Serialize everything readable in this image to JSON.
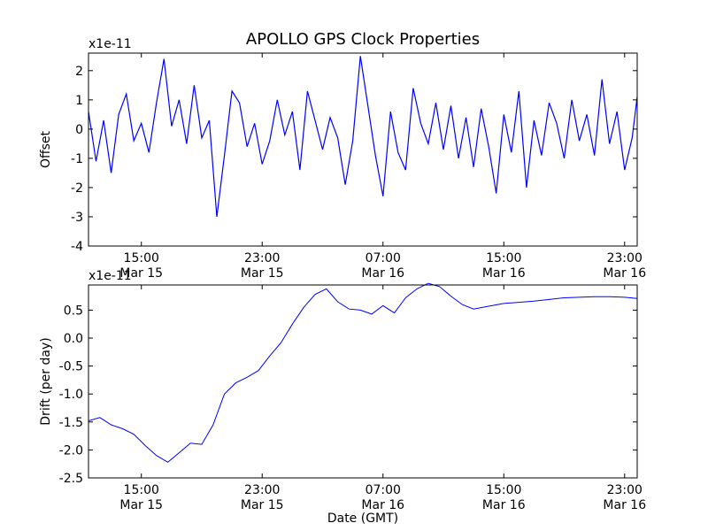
{
  "title": "APOLLO GPS Clock Properties",
  "chart_data": [
    {
      "type": "line",
      "ylabel": "Offset",
      "scale_label": "x1e-11",
      "xlabel": "",
      "ylim": [
        -4,
        2.6
      ],
      "yticks": [
        -4,
        -3,
        -2,
        -1,
        0,
        1,
        2
      ],
      "xlim": [
        "Mar 15 11:30",
        "Mar 16 23:50"
      ],
      "xticks": [
        {
          "at": "Mar 15 15:00",
          "time": "15:00",
          "date": "Mar 15"
        },
        {
          "at": "Mar 15 23:00",
          "time": "23:00",
          "date": "Mar 15"
        },
        {
          "at": "Mar 16 07:00",
          "time": "07:00",
          "date": "Mar 16"
        },
        {
          "at": "Mar 16 15:00",
          "time": "15:00",
          "date": "Mar 16"
        },
        {
          "at": "Mar 16 23:00",
          "time": "23:00",
          "date": "Mar 16"
        }
      ],
      "color": "#0000ff",
      "series": [
        {
          "x": [
            "Mar 15 11:30",
            "Mar 15 12:00",
            "Mar 15 12:30",
            "Mar 15 13:00",
            "Mar 15 13:30",
            "Mar 15 14:00",
            "Mar 15 14:30",
            "Mar 15 15:00",
            "Mar 15 15:30",
            "Mar 15 16:00",
            "Mar 15 16:30",
            "Mar 15 17:00",
            "Mar 15 17:30",
            "Mar 15 18:00",
            "Mar 15 18:30",
            "Mar 15 19:00",
            "Mar 15 19:30",
            "Mar 15 20:00",
            "Mar 15 20:30",
            "Mar 15 21:00",
            "Mar 15 21:30",
            "Mar 15 22:00",
            "Mar 15 22:30",
            "Mar 15 23:00",
            "Mar 15 23:30",
            "Mar 16 00:00",
            "Mar 16 00:30",
            "Mar 16 01:00",
            "Mar 16 01:30",
            "Mar 16 02:00",
            "Mar 16 02:30",
            "Mar 16 03:00",
            "Mar 16 03:30",
            "Mar 16 04:00",
            "Mar 16 04:30",
            "Mar 16 05:00",
            "Mar 16 05:30",
            "Mar 16 06:00",
            "Mar 16 06:30",
            "Mar 16 07:00",
            "Mar 16 07:30",
            "Mar 16 08:00",
            "Mar 16 08:30",
            "Mar 16 09:00",
            "Mar 16 09:30",
            "Mar 16 10:00",
            "Mar 16 10:30",
            "Mar 16 11:00",
            "Mar 16 11:30",
            "Mar 16 12:00",
            "Mar 16 12:30",
            "Mar 16 13:00",
            "Mar 16 13:30",
            "Mar 16 14:00",
            "Mar 16 14:30",
            "Mar 16 15:00",
            "Mar 16 15:30",
            "Mar 16 16:00",
            "Mar 16 16:30",
            "Mar 16 17:00",
            "Mar 16 17:30",
            "Mar 16 18:00",
            "Mar 16 18:30",
            "Mar 16 19:00",
            "Mar 16 19:30",
            "Mar 16 20:00",
            "Mar 16 20:30",
            "Mar 16 21:00",
            "Mar 16 21:30",
            "Mar 16 22:00",
            "Mar 16 22:30",
            "Mar 16 23:00",
            "Mar 16 23:30",
            "Mar 16 23:50"
          ],
          "values": [
            0.6,
            -1.1,
            0.3,
            -1.5,
            0.5,
            1.2,
            -0.4,
            0.2,
            -0.8,
            0.9,
            2.4,
            0.1,
            1.0,
            -0.5,
            1.5,
            -0.3,
            0.3,
            -3.0,
            -0.9,
            1.3,
            0.9,
            -0.6,
            0.2,
            -1.2,
            -0.4,
            1.0,
            -0.2,
            0.6,
            -1.4,
            1.3,
            0.3,
            -0.7,
            0.4,
            -0.3,
            -1.9,
            -0.4,
            2.5,
            0.8,
            -0.9,
            -2.3,
            0.6,
            -0.8,
            -1.4,
            1.4,
            0.2,
            -0.5,
            0.9,
            -0.7,
            0.8,
            -1.0,
            0.4,
            -1.3,
            0.7,
            -0.6,
            -2.2,
            0.5,
            -0.8,
            1.3,
            -2.0,
            0.3,
            -0.9,
            0.9,
            0.2,
            -1.0,
            1.0,
            -0.4,
            0.5,
            -0.9,
            1.7,
            -0.5,
            0.6,
            -1.4,
            -0.3,
            1.1
          ]
        }
      ]
    },
    {
      "type": "line",
      "ylabel": "Drift (per day)",
      "scale_label": "x1e-11",
      "xlabel": "Date (GMT)",
      "ylim": [
        -2.5,
        0.95
      ],
      "yticks": [
        -2.5,
        -2.0,
        -1.5,
        -1.0,
        -0.5,
        0.0,
        0.5
      ],
      "yticklabels": [
        "-2.5",
        "-2.0",
        "-1.5",
        "-1.0",
        "-0.5",
        "0.0",
        "0.5"
      ],
      "xlim": [
        "Mar 15 11:30",
        "Mar 16 23:50"
      ],
      "xticks": [
        {
          "at": "Mar 15 15:00",
          "time": "15:00",
          "date": "Mar 15"
        },
        {
          "at": "Mar 15 23:00",
          "time": "23:00",
          "date": "Mar 15"
        },
        {
          "at": "Mar 16 07:00",
          "time": "07:00",
          "date": "Mar 16"
        },
        {
          "at": "Mar 16 15:00",
          "time": "15:00",
          "date": "Mar 16"
        },
        {
          "at": "Mar 16 23:00",
          "time": "23:00",
          "date": "Mar 16"
        }
      ],
      "color": "#0000ff",
      "series": [
        {
          "x": [
            "Mar 15 11:30",
            "Mar 15 12:15",
            "Mar 15 13:00",
            "Mar 15 13:45",
            "Mar 15 14:30",
            "Mar 15 15:15",
            "Mar 15 16:00",
            "Mar 15 16:45",
            "Mar 15 17:30",
            "Mar 15 18:15",
            "Mar 15 19:00",
            "Mar 15 19:45",
            "Mar 15 20:30",
            "Mar 15 21:15",
            "Mar 15 22:00",
            "Mar 15 22:45",
            "Mar 15 23:30",
            "Mar 16 00:15",
            "Mar 16 01:00",
            "Mar 16 01:45",
            "Mar 16 02:30",
            "Mar 16 03:15",
            "Mar 16 04:00",
            "Mar 16 04:45",
            "Mar 16 05:30",
            "Mar 16 06:15",
            "Mar 16 07:00",
            "Mar 16 07:45",
            "Mar 16 08:30",
            "Mar 16 09:15",
            "Mar 16 10:00",
            "Mar 16 10:45",
            "Mar 16 11:30",
            "Mar 16 12:15",
            "Mar 16 13:00",
            "Mar 16 14:00",
            "Mar 16 15:00",
            "Mar 16 16:00",
            "Mar 16 17:00",
            "Mar 16 18:00",
            "Mar 16 19:00",
            "Mar 16 20:00",
            "Mar 16 21:00",
            "Mar 16 22:00",
            "Mar 16 23:00",
            "Mar 16 23:50"
          ],
          "values": [
            -1.48,
            -1.42,
            -1.55,
            -1.62,
            -1.72,
            -1.92,
            -2.1,
            -2.22,
            -2.05,
            -1.88,
            -1.9,
            -1.55,
            -1.0,
            -0.8,
            -0.7,
            -0.58,
            -0.32,
            -0.08,
            0.25,
            0.55,
            0.78,
            0.88,
            0.65,
            0.52,
            0.5,
            0.43,
            0.58,
            0.45,
            0.72,
            0.88,
            0.98,
            0.92,
            0.75,
            0.6,
            0.52,
            0.57,
            0.62,
            0.64,
            0.66,
            0.69,
            0.72,
            0.73,
            0.74,
            0.74,
            0.73,
            0.71
          ]
        }
      ]
    }
  ]
}
